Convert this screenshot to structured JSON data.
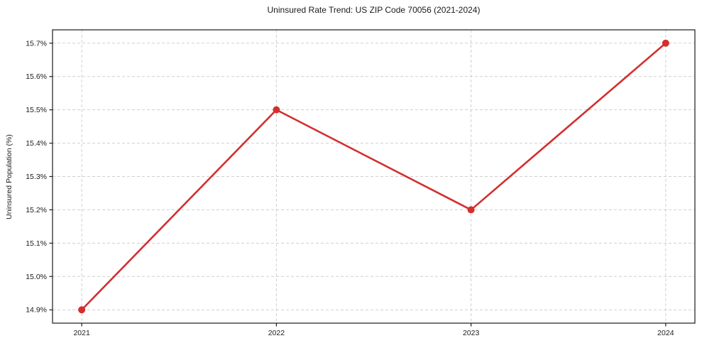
{
  "chart_data": {
    "type": "line",
    "title": "Uninsured Rate Trend: US ZIP Code 70056 (2021-2024)",
    "xlabel": "",
    "ylabel": "Uninsured Population (%)",
    "x": [
      2021,
      2022,
      2023,
      2024
    ],
    "y": [
      14.9,
      15.5,
      15.2,
      15.7
    ],
    "series_name": "Uninsured rate",
    "xtick_values": [
      2021,
      2022,
      2023,
      2024
    ],
    "xtick_labels": [
      "2021",
      "2022",
      "2023",
      "2024"
    ],
    "ytick_values": [
      14.9,
      15.0,
      15.1,
      15.2,
      15.3,
      15.4,
      15.5,
      15.6,
      15.7
    ],
    "ytick_labels": [
      "14.9%",
      "15.0%",
      "15.1%",
      "15.2%",
      "15.3%",
      "15.4%",
      "15.5%",
      "15.6%",
      "15.7%"
    ],
    "xlim": [
      2020.85,
      2024.15
    ],
    "ylim": [
      14.86,
      15.74
    ],
    "grid": true,
    "grid_style": "dashed",
    "legend": "none",
    "colors": {
      "line": "#d32f2f",
      "marker": "#d32f2f",
      "grid": "#cfcfcf",
      "axis": "#1a1a1a",
      "text": "#1a1a1a",
      "background": "#ffffff"
    }
  }
}
